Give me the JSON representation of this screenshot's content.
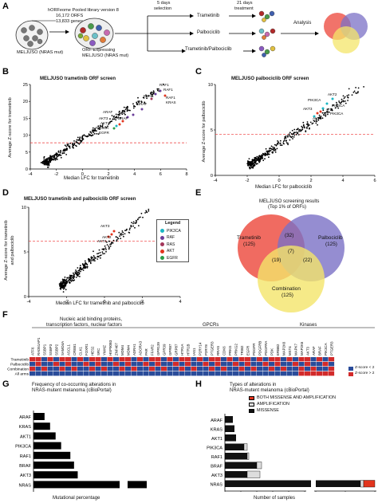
{
  "panelA": {
    "letter": "A",
    "lib_line1": "hORFeome Pooled library version 8",
    "lib_line2": "16,172 ORFS",
    "lib_line3": "13,833 genes",
    "cell_label": "MELJUSO (NRAS mut)",
    "orf_line1": "ORF-Expressing",
    "orf_line2": "MELJUSO (NRAS mut)",
    "days5_1": "5 days",
    "days5_2": "selection",
    "days21_1": "21 days",
    "days21_2": "treatment",
    "arms": [
      "Trametinib",
      "Palbociclib",
      "Trametinib/Palbociclib"
    ],
    "analysis": "Analysis",
    "colors": {
      "red": "#ee5b50",
      "purple": "#7b70c6",
      "yellow": "#f4e56a"
    }
  },
  "panelB": {
    "letter": "B",
    "title": "MELJUSO trametinib ORF screen",
    "xlabel": "Median LFC for trametinib",
    "ylabel": "Average Z-score for trametinib",
    "xticks": [
      "-4",
      "-2",
      "0",
      "2",
      "4",
      "6",
      "8"
    ],
    "yticks": [
      "0",
      "5",
      "10",
      "15",
      "20",
      "25"
    ],
    "labels": [
      "RAF1",
      "RAF1",
      "KRAS",
      "BRAF",
      "ARAF",
      "BRAF",
      "AKT3",
      "AKT2",
      "PIK3CA",
      "EGFR",
      "RAF1",
      "KRAS"
    ]
  },
  "panelC": {
    "letter": "C",
    "title": "MELJUSO palbociclib ORF screen",
    "xlabel": "Median LFC for palbociclib",
    "ylabel": "Average Z-score for palbociclib",
    "xticks": [
      "-4",
      "-2",
      "0",
      "2",
      "4",
      "6"
    ],
    "yticks": [
      "0",
      "5",
      "10"
    ],
    "labels": [
      "AKT2",
      "PIK3CA",
      "PIK3CA",
      "AKT3",
      "PIK3CA",
      "AKT3"
    ]
  },
  "panelD": {
    "letter": "D",
    "title": "MELJUSO trametinib and palbociclib ORF screen",
    "xlabel": "Median LFC for trametinib and palbociclib",
    "ylabel_1": "Average Z-score for trametinib",
    "ylabel_2": "and palbociclib",
    "xticks": [
      "-4",
      "-2",
      "0",
      "2",
      "4"
    ],
    "yticks": [
      "0",
      "5",
      "10"
    ],
    "labels": [
      "AKT3",
      "AKT2",
      "AKT3"
    ],
    "legend_title": "Legend",
    "legend": [
      {
        "name": "PIK3CA",
        "color": "#18b6c4"
      },
      {
        "name": "RAF",
        "color": "#6a3d99"
      },
      {
        "name": "RAS",
        "color": "#a3365a"
      },
      {
        "name": "AKT",
        "color": "#e2341d"
      },
      {
        "name": "EGFR",
        "color": "#2a9d48"
      }
    ]
  },
  "panelE": {
    "letter": "E",
    "title_1": "MELJUSO screening results",
    "title_2": "(Top 1% of ORFs)",
    "circles": [
      {
        "name": "Trametinib",
        "count": "(125)"
      },
      {
        "name": "Palbociclib",
        "count": "(125)"
      },
      {
        "name": "Combination",
        "count": "(125)"
      }
    ],
    "overlaps": [
      "(32)",
      "(7)",
      "(19)",
      "(22)"
    ]
  },
  "panelF": {
    "letter": "F",
    "group1_1": "Nucleic acid binding proteins,",
    "group1_2": "transcription factors, nuclear factors",
    "group2": "GPCRs",
    "group3": "Kinases",
    "rows": [
      "Trametinib",
      "Palbociclib",
      "Combination",
      "All arms"
    ],
    "genes": [
      "ATF6",
      "RAD51AP1",
      "SSBP1",
      "SSBP3",
      "SSBP2",
      "SAMD4A",
      "ASCL1",
      "CREB1",
      "CLK1",
      "FOXR1",
      "HES2",
      "SRC",
      "YWHZ",
      "HSP90B3",
      "ZNF407",
      "MDM4",
      "MDM4",
      "ADRA1",
      "ADORA3",
      "PAR",
      "FFAR2",
      "GPR139",
      "GPR39",
      "GPR87",
      "GRP87",
      "HTR1A",
      "HTR1B",
      "IAS1",
      "P2RY14",
      "P2RY8",
      "PTGER3",
      "RRAS",
      "CDK6",
      "PRKG",
      "PRKG2",
      "TRIB2",
      "EGFR",
      "PDGFR",
      "PDGFRB",
      "PDGFRA",
      "PDK",
      "ERBB2",
      "MAP2K6",
      "MST4",
      "MAPK7",
      "MAP2K6",
      "AKT3",
      "ARAF",
      "BRAF",
      "PIK3CA",
      "PTGER3"
    ],
    "legend_neg": "Z-score < 2",
    "legend_pos": "Z-score > 2",
    "colors": {
      "neg": "#2a4c9a",
      "pos": "#d22a2a"
    }
  },
  "panelG": {
    "letter": "G",
    "title_1": "Frequency of co-occurring alterations in",
    "title_2": "NRAS-mutent melanoma (cBioPortal)",
    "xlabel": "Mutational percentage",
    "categories": [
      "ARAF",
      "KRAS",
      "AKT1",
      "PIK3CA",
      "RAF1",
      "BRAF",
      "AKT3",
      "NRAS"
    ],
    "values": [
      0.6,
      0.9,
      1.2,
      1.5,
      2.0,
      2.2,
      2.4,
      100
    ],
    "xticks": [
      "0",
      "2",
      "4",
      "50",
      "100"
    ]
  },
  "panelH": {
    "letter": "H",
    "title_1": "Types of alterations in",
    "title_2": "NRAS-mutent melanoma (cBioPortal)",
    "legend": [
      "BOTH MISSENSE AND AMPLIFICATION",
      "AMPLIFICATION",
      "MISSENSE"
    ],
    "categories": [
      "ARAF",
      "KRAS",
      "AKT1",
      "PIK3CA",
      "RAF1",
      "BRAF",
      "AKT3",
      "NRAS"
    ],
    "missense": [
      5,
      6,
      7,
      12,
      14,
      20,
      14,
      260
    ],
    "amplification": [
      0,
      0,
      0,
      2,
      1,
      3,
      8,
      5
    ],
    "both": [
      0,
      0,
      0,
      0,
      0,
      0,
      0,
      40
    ],
    "xlabel": "Number of samples",
    "xticks": [
      "0",
      "10",
      "20",
      "30",
      "40",
      "50",
      "200",
      "240",
      "280"
    ]
  }
}
